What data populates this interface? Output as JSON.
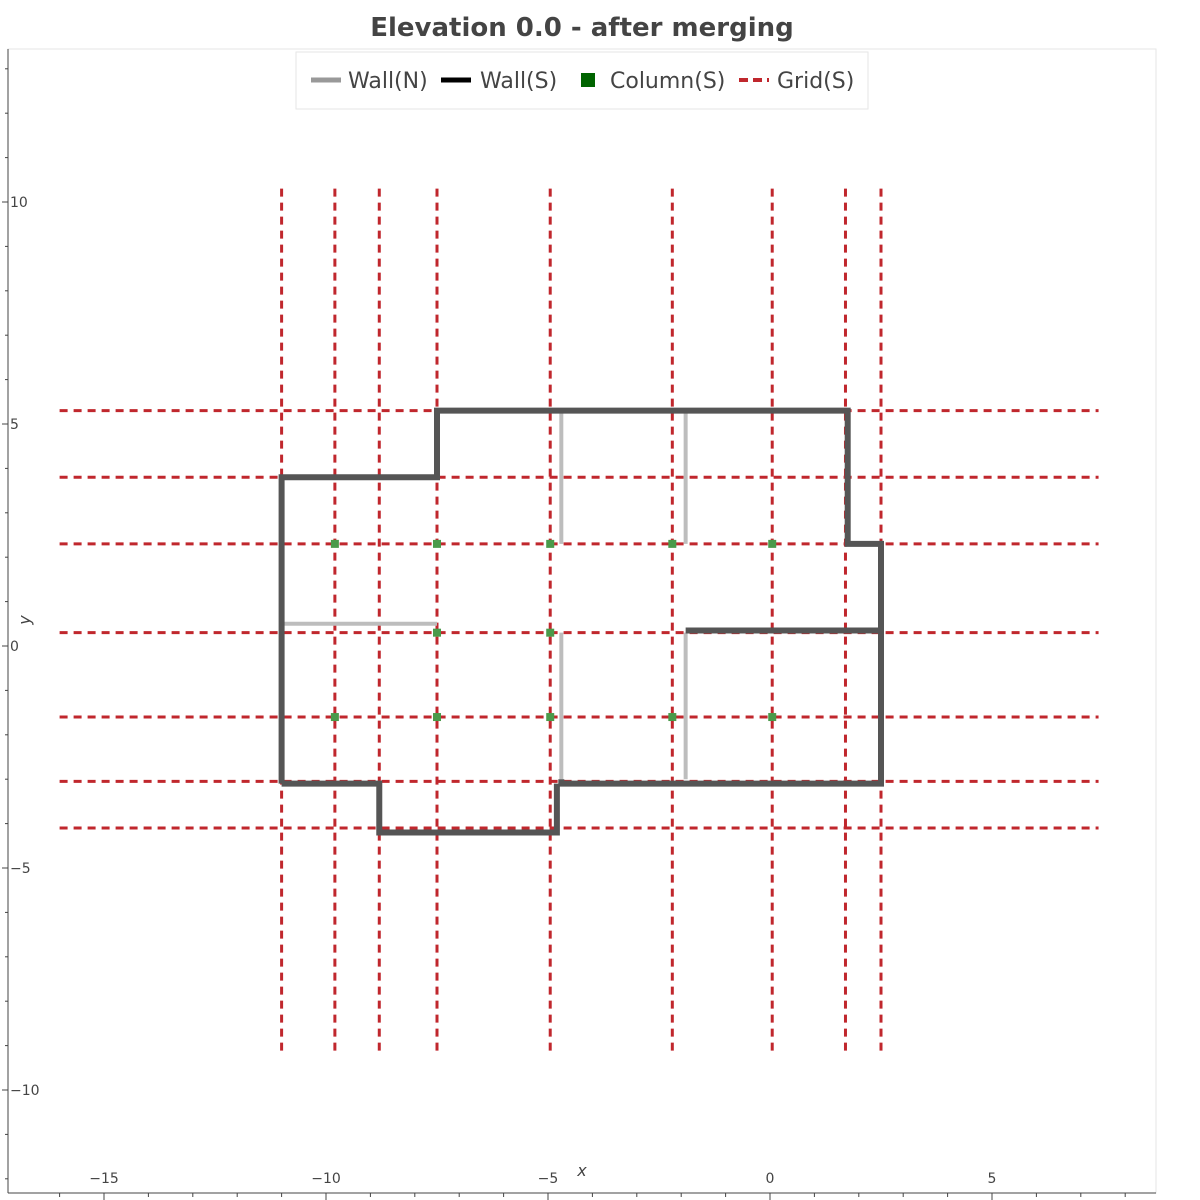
{
  "chart_data": {
    "type": "line",
    "title": "Elevation 0.0 - after merging",
    "xlabel": "x",
    "ylabel": "y",
    "xlim": [
      -16.2,
      8.5
    ],
    "ylim": [
      -12.3,
      13.3
    ],
    "grid": false,
    "legend_position": "top-center",
    "x_ticks": [
      -15,
      -10,
      -5,
      0,
      5
    ],
    "y_ticks": [
      -10,
      -5,
      0,
      5,
      10
    ],
    "x_tick_labels": [
      "−15",
      "−10",
      "−5",
      "0",
      "5"
    ],
    "y_tick_labels": [
      "−10",
      "−5",
      "0",
      "5",
      "10"
    ],
    "legend": [
      {
        "label": "Wall(N)",
        "kind": "line",
        "color": "#999999"
      },
      {
        "label": "Wall(S)",
        "kind": "line",
        "color": "#000000"
      },
      {
        "label": "Column(S)",
        "kind": "square",
        "color": "#006400"
      },
      {
        "label": "Grid(S)",
        "kind": "dash",
        "color": "#c0272d"
      }
    ],
    "colors": {
      "wall_n": "#bdbdbd",
      "wall_s": "#555555",
      "column": "#4a9a4a",
      "grid": "#c0272d",
      "axis": "#444444"
    },
    "series": [
      {
        "name": "Wall(N)",
        "segments": [
          [
            [
              -11.0,
              0.5
            ],
            [
              -7.5,
              0.5
            ]
          ],
          [
            [
              -4.7,
              5.3
            ],
            [
              -4.7,
              2.3
            ]
          ],
          [
            [
              -4.7,
              0.3
            ],
            [
              -4.7,
              -3.0
            ]
          ],
          [
            [
              -1.9,
              5.3
            ],
            [
              -1.9,
              2.3
            ]
          ],
          [
            [
              -1.9,
              0.3
            ],
            [
              -1.9,
              -3.0
            ]
          ]
        ]
      },
      {
        "name": "Wall(S)",
        "polylines": [
          [
            [
              -11.0,
              -3.1
            ],
            [
              -11.0,
              3.8
            ],
            [
              -7.5,
              3.8
            ],
            [
              -7.5,
              5.3
            ],
            [
              1.75,
              5.3
            ],
            [
              1.75,
              2.3
            ],
            [
              2.5,
              2.3
            ],
            [
              2.5,
              -3.1
            ],
            [
              -4.7,
              -3.1
            ],
            [
              -4.7,
              -3.0
            ]
          ],
          [
            [
              -11.0,
              -3.1
            ],
            [
              -8.8,
              -3.1
            ],
            [
              -8.8,
              -4.2
            ],
            [
              -4.8,
              -4.2
            ],
            [
              -4.8,
              -3.1
            ]
          ],
          [
            [
              -1.9,
              0.35
            ],
            [
              2.5,
              0.35
            ]
          ]
        ]
      },
      {
        "name": "Column(S)",
        "points": [
          [
            -9.8,
            2.3
          ],
          [
            -7.5,
            2.3
          ],
          [
            -4.95,
            2.3
          ],
          [
            -2.2,
            2.3
          ],
          [
            0.05,
            2.3
          ],
          [
            -7.5,
            0.3
          ],
          [
            -4.95,
            0.3
          ],
          [
            -9.8,
            -1.6
          ],
          [
            -7.5,
            -1.6
          ],
          [
            -4.95,
            -1.6
          ],
          [
            -2.2,
            -1.6
          ],
          [
            0.05,
            -1.6
          ]
        ]
      },
      {
        "name": "Grid(S)",
        "vertical_x": [
          -11.0,
          -9.8,
          -8.8,
          -7.5,
          -4.95,
          -2.2,
          0.05,
          1.7,
          2.5
        ],
        "vertical_y_range": [
          -9.2,
          10.3
        ],
        "horizontal_y": [
          5.3,
          3.8,
          2.3,
          0.3,
          -1.6,
          -3.05,
          -4.1
        ],
        "horizontal_x_range": [
          -16.0,
          7.4
        ]
      }
    ]
  }
}
